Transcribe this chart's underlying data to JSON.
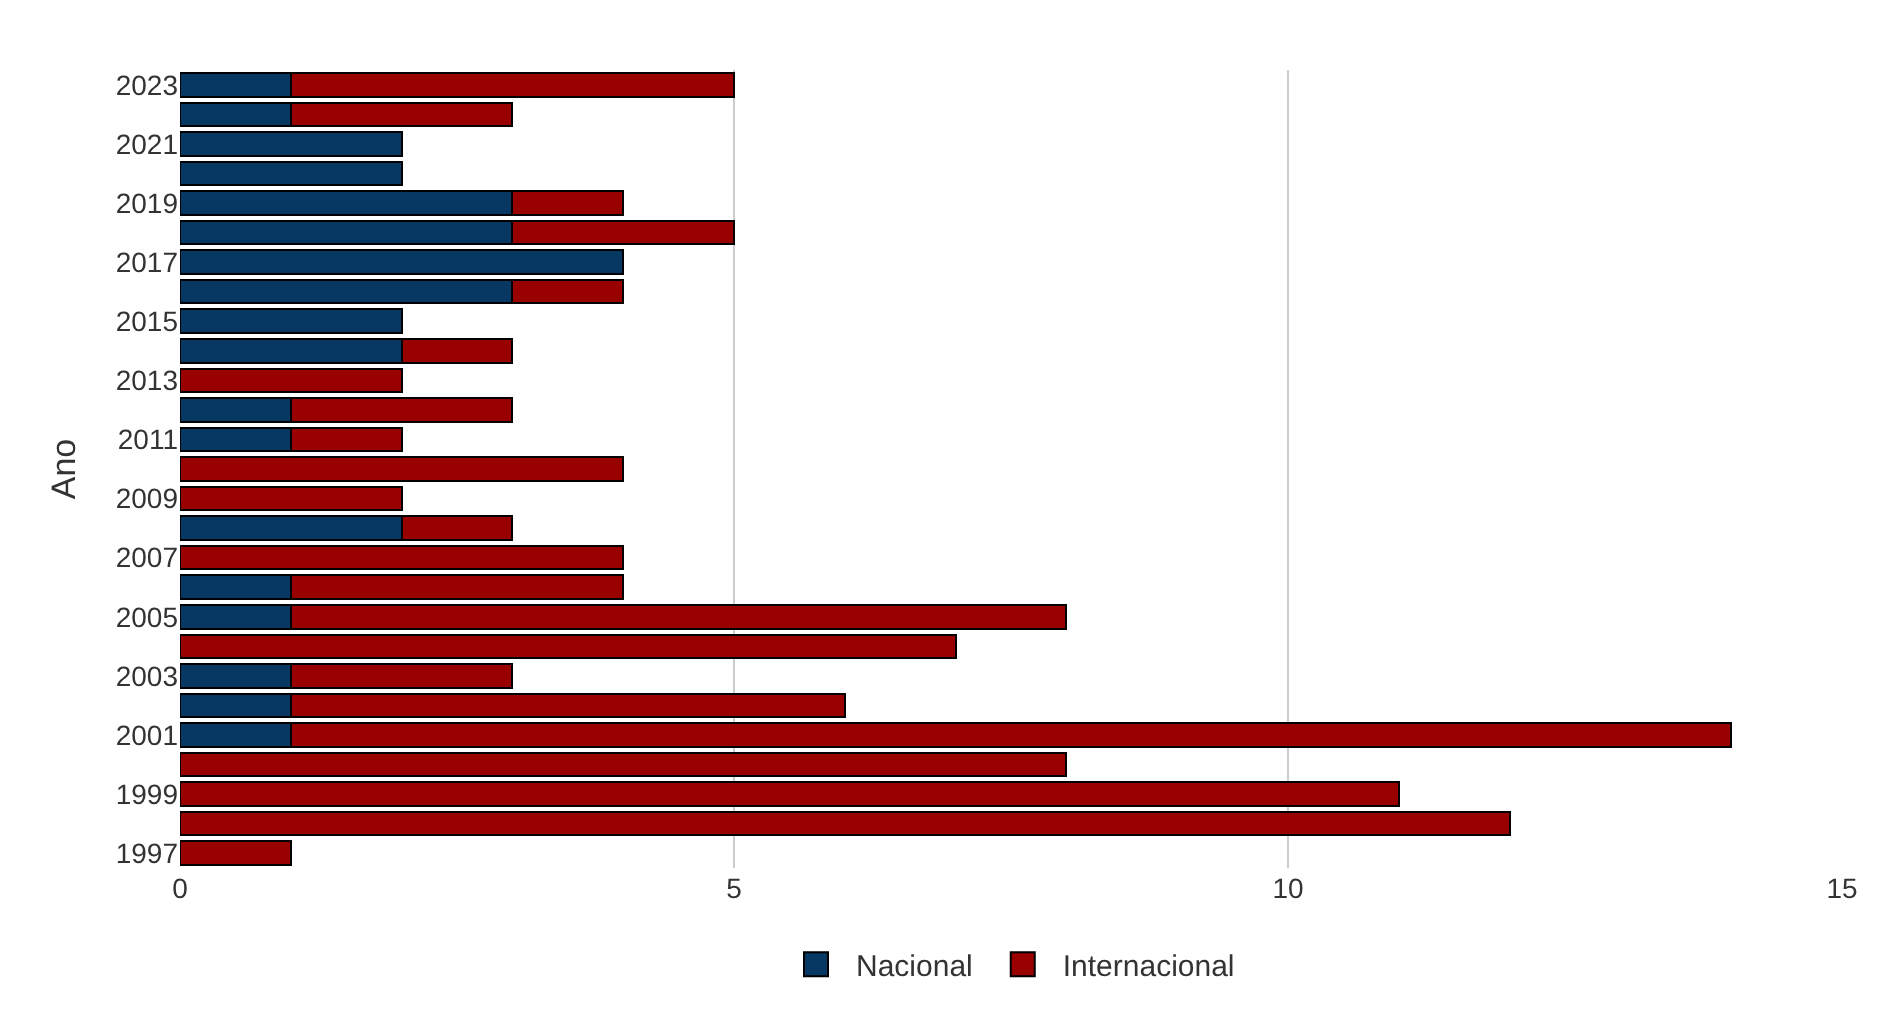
{
  "chart_data": {
    "type": "bar",
    "orientation": "horizontal",
    "stacked": true,
    "ylabel": "Ano",
    "categories": [
      "2023",
      null,
      "2021",
      null,
      "2019",
      null,
      "2017",
      null,
      "2015",
      null,
      "2013",
      null,
      "2011",
      null,
      "2009",
      null,
      "2007",
      null,
      "2005",
      null,
      "2003",
      null,
      "2001",
      null,
      "1999",
      null,
      "1997"
    ],
    "series": [
      {
        "name": "Nacional",
        "color": "#073763",
        "values": [
          1,
          1,
          2,
          2,
          3,
          3,
          4,
          3,
          2,
          2,
          null,
          1,
          1,
          null,
          null,
          2,
          null,
          1,
          1,
          null,
          1,
          1,
          1,
          null,
          null,
          null,
          null
        ]
      },
      {
        "name": "Internacional",
        "color": "#990000",
        "values": [
          4,
          2,
          null,
          null,
          1,
          2,
          null,
          1,
          null,
          1,
          2,
          2,
          1,
          4,
          2,
          1,
          4,
          3,
          7,
          7,
          2,
          5,
          13,
          8,
          11,
          12,
          1
        ]
      }
    ],
    "xlim": [
      0,
      15
    ],
    "xticks": [
      0,
      5,
      10,
      15
    ],
    "grid": "x",
    "legend": "bottom"
  }
}
